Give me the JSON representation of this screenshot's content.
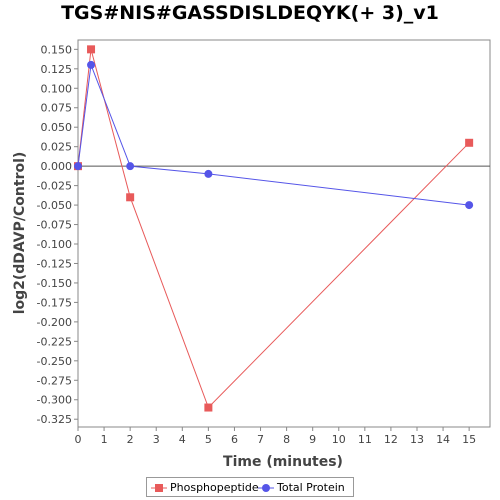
{
  "chart_data": {
    "type": "line",
    "title": "TGS#NIS#GASSDISLDEQYK(+ 3)_v1",
    "xlabel": "Time (minutes)",
    "ylabel": "log2(dDAVP/Control)",
    "xlim": [
      0,
      15.8
    ],
    "ylim": [
      -0.335,
      0.162
    ],
    "x_ticks": [
      0,
      1,
      2,
      3,
      4,
      5,
      6,
      7,
      8,
      9,
      10,
      11,
      12,
      13,
      14,
      15
    ],
    "y_ticks": [
      0.15,
      0.125,
      0.1,
      0.075,
      0.05,
      0.025,
      0.0,
      -0.025,
      -0.05,
      -0.075,
      -0.1,
      -0.125,
      -0.15,
      -0.175,
      -0.2,
      -0.225,
      -0.25,
      -0.275,
      -0.3,
      -0.325
    ],
    "x_tick_labels": [
      "0",
      "1",
      "2",
      "3",
      "4",
      "5",
      "6",
      "7",
      "8",
      "9",
      "10",
      "11",
      "12",
      "13",
      "14",
      "15"
    ],
    "y_tick_labels": [
      "0.150",
      "0.125",
      "0.100",
      "0.075",
      "0.050",
      "0.025",
      "0.000",
      "-0.025",
      "-0.050",
      "-0.075",
      "-0.100",
      "-0.125",
      "-0.150",
      "-0.175",
      "-0.200",
      "-0.225",
      "-0.250",
      "-0.275",
      "-0.300",
      "-0.325"
    ],
    "zero_line": true,
    "grid": false,
    "legend_position": "bottom",
    "series": [
      {
        "name": "Phosphopeptide",
        "color": "#e85a5a",
        "marker": "square",
        "x": [
          0,
          0.5,
          2,
          5,
          15
        ],
        "y": [
          0.0,
          0.15,
          -0.04,
          -0.31,
          0.03
        ]
      },
      {
        "name": "Total Protein",
        "color": "#5555e8",
        "marker": "circle",
        "x": [
          0,
          0.5,
          2,
          5,
          15
        ],
        "y": [
          0.0,
          0.13,
          0.0,
          -0.01,
          -0.05
        ]
      }
    ]
  }
}
